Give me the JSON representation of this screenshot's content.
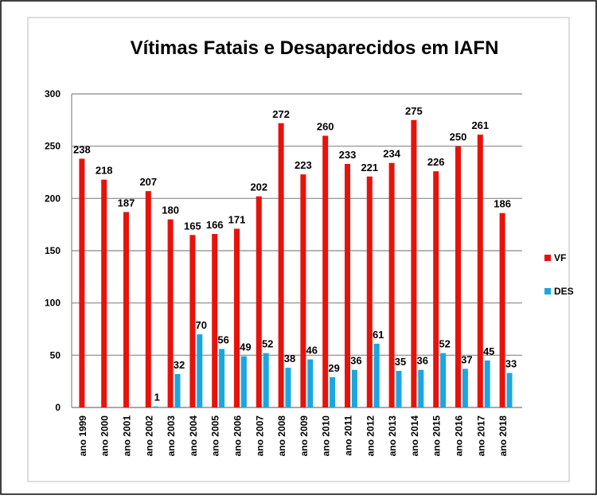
{
  "chart_data": {
    "type": "bar",
    "title": "Vítimas Fatais e Desaparecidos em IAFN",
    "categories": [
      "ano 1999",
      "ano 2000",
      "ano 2001",
      "ano 2002",
      "ano 2003",
      "ano 2004",
      "ano 2005",
      "ano 2006",
      "ano 2007",
      "ano 2008",
      "ano 2009",
      "ano 2010",
      "ano 2011",
      "ano 2012",
      "ano 2013",
      "ano 2014",
      "ano 2015",
      "ano 2016",
      "ano 2017",
      "ano 2018"
    ],
    "series": [
      {
        "name": "VF",
        "color": "#e8120c",
        "values": [
          238,
          218,
          187,
          207,
          180,
          165,
          166,
          171,
          202,
          272,
          223,
          260,
          233,
          221,
          234,
          275,
          226,
          250,
          261,
          186
        ]
      },
      {
        "name": "DES",
        "color": "#1aa7e0",
        "values": [
          null,
          null,
          null,
          1,
          32,
          70,
          56,
          49,
          52,
          38,
          46,
          29,
          36,
          61,
          35,
          36,
          52,
          37,
          45,
          33
        ]
      }
    ],
    "ylim": [
      0,
      300
    ],
    "yticks": [
      0,
      50,
      100,
      150,
      200,
      250,
      300
    ],
    "grid": true,
    "legend": "right"
  }
}
